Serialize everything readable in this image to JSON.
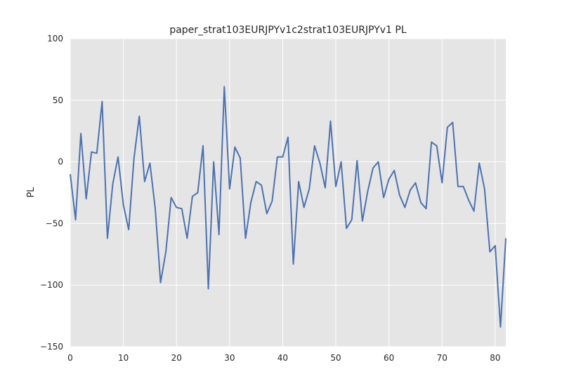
{
  "chart_data": {
    "type": "line",
    "title": "paper_strat103EURJPYv1c2strat103EURJPYv1 PL",
    "xlabel": "",
    "ylabel": "PL",
    "xlim": [
      0,
      82
    ],
    "ylim": [
      -150,
      100
    ],
    "xticks": [
      0,
      10,
      20,
      30,
      40,
      50,
      60,
      70,
      80
    ],
    "xtick_labels": [
      "0",
      "10",
      "20",
      "30",
      "40",
      "50",
      "60",
      "70",
      "80"
    ],
    "yticks": [
      100,
      50,
      0,
      -50,
      -100,
      -150
    ],
    "ytick_labels": [
      "100",
      "50",
      "0",
      "−50",
      "−100",
      "−150"
    ],
    "grid": true,
    "colors": {
      "line": "#4c72b0",
      "background": "#e5e5e5",
      "grid": "#ffffff"
    },
    "series": [
      {
        "name": "PL",
        "x": [
          0,
          1,
          2,
          3,
          4,
          5,
          6,
          7,
          8,
          9,
          10,
          11,
          12,
          13,
          14,
          15,
          16,
          17,
          18,
          19,
          20,
          21,
          22,
          23,
          24,
          25,
          26,
          27,
          28,
          29,
          30,
          31,
          32,
          33,
          34,
          35,
          36,
          37,
          38,
          39,
          40,
          41,
          42,
          43,
          44,
          45,
          46,
          47,
          48,
          49,
          50,
          51,
          52,
          53,
          54,
          55,
          56,
          57,
          58,
          59,
          60,
          61,
          62,
          63,
          64,
          65,
          66,
          67,
          68,
          69,
          70,
          71,
          72,
          73,
          74,
          75,
          76,
          77,
          78,
          79,
          80,
          81,
          82
        ],
        "values": [
          -10,
          -47,
          23,
          -30,
          8,
          7,
          49,
          -62,
          -18,
          4,
          -35,
          -55,
          3,
          37,
          -16,
          -1,
          -38,
          -98,
          -73,
          -29,
          -37,
          -38,
          -62,
          -28,
          -25,
          13,
          -103,
          0,
          -59,
          61,
          -22,
          12,
          3,
          -62,
          -33,
          -16,
          -19,
          -42,
          -32,
          4,
          4,
          20,
          -83,
          -16,
          -37,
          -22,
          13,
          -1,
          -21,
          33,
          -20,
          0,
          -54,
          -47,
          1,
          -48,
          -24,
          -5,
          0,
          -29,
          -14,
          -7,
          -27,
          -37,
          -23,
          -17,
          -33,
          -38,
          16,
          13,
          -17,
          28,
          32,
          -20,
          -20,
          -31,
          -40,
          -1,
          -22,
          -73,
          -68,
          -134,
          -62
        ]
      }
    ]
  }
}
